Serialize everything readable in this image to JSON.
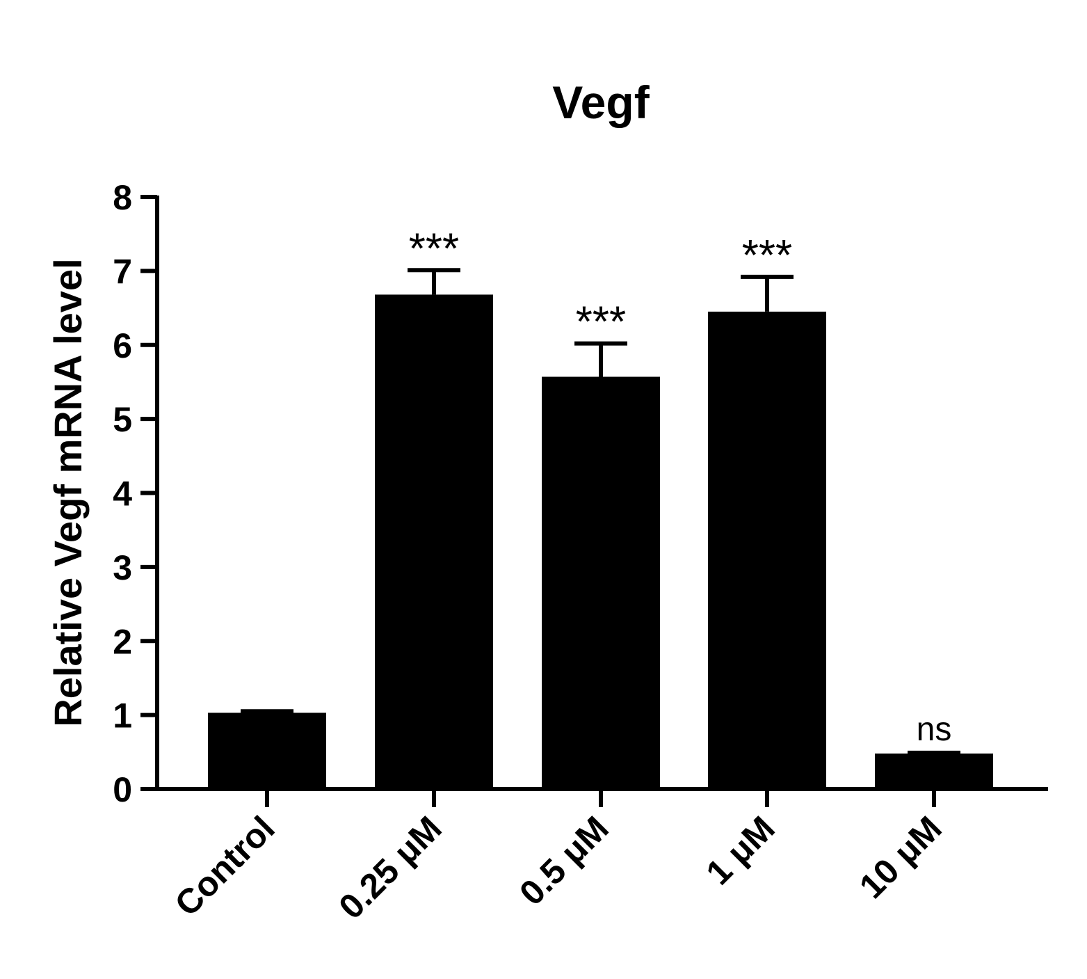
{
  "chart_data": {
    "type": "bar",
    "title": "Vegf",
    "xlabel": "",
    "ylabel": "Relative Vegf mRNA  level",
    "ylim": [
      0,
      8
    ],
    "yticks": [
      0,
      1,
      2,
      3,
      4,
      5,
      6,
      7,
      8
    ],
    "ytick_labels": [
      "0",
      "1",
      "2",
      "3",
      "4",
      "5",
      "6",
      "7",
      "8"
    ],
    "categories": [
      "Control",
      "0.25 μM",
      "0.5 μM",
      "1 μM",
      "10 μM"
    ],
    "values": [
      1.03,
      6.68,
      5.57,
      6.45,
      0.48
    ],
    "error_upper": [
      0.02,
      0.33,
      0.45,
      0.47,
      0.01
    ],
    "annotations": [
      "",
      "***",
      "***",
      "***",
      "ns"
    ],
    "bar_color": "#000000",
    "grid": false,
    "legend": "none"
  }
}
